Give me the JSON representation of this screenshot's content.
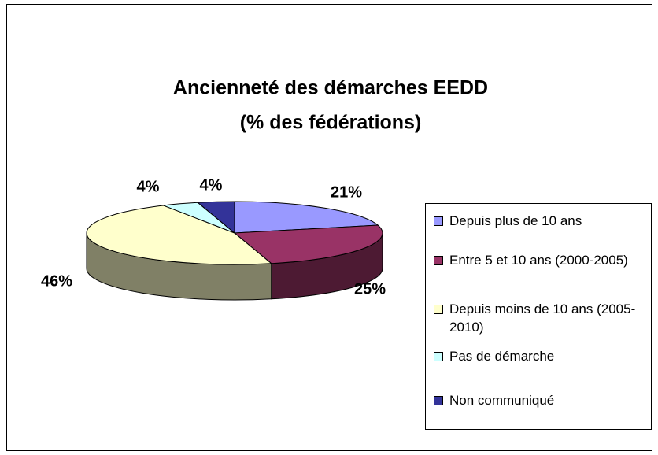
{
  "chart_data": {
    "type": "pie3d",
    "title": "Ancienneté des démarches EEDD",
    "subtitle": "(% des fédérations)",
    "categories": [
      "Depuis plus de 10 ans",
      "Entre 5 et 10 ans (2000-2005)",
      "Depuis moins de 10 ans (2005-2010)",
      "Pas de démarche",
      "Non communiqué"
    ],
    "values": [
      21,
      25,
      46,
      4,
      4
    ],
    "value_labels": [
      "21%",
      "25%",
      "46%",
      "4%",
      "4%"
    ],
    "colors": [
      "#9999ff",
      "#993366",
      "#ffffcc",
      "#ccffff",
      "#333399"
    ],
    "legend": "right"
  }
}
